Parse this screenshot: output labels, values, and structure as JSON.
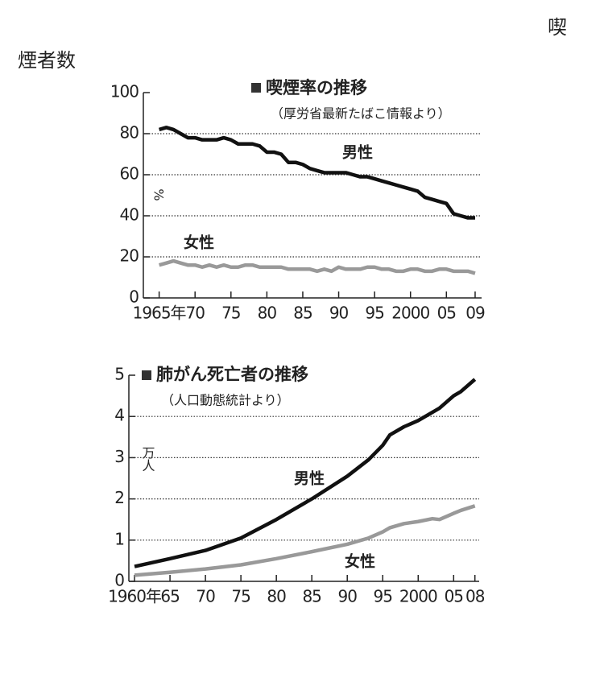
{
  "page_text": {
    "top_right": "喫",
    "left": "煙者数"
  },
  "chart_data": [
    {
      "type": "line",
      "title": "喫煙率の推移",
      "subtitle": "（厚労省最新たばこ情報より）",
      "ylabel": "%",
      "x": [
        1965,
        1966,
        1967,
        1968,
        1969,
        1970,
        1971,
        1972,
        1973,
        1974,
        1975,
        1976,
        1977,
        1978,
        1979,
        1980,
        1981,
        1982,
        1983,
        1984,
        1985,
        1986,
        1987,
        1988,
        1989,
        1990,
        1991,
        1992,
        1993,
        1994,
        1995,
        1996,
        1997,
        1998,
        1999,
        2000,
        2001,
        2002,
        2003,
        2004,
        2005,
        2006,
        2007,
        2008,
        2009
      ],
      "series": [
        {
          "name": "男性",
          "color": "#111111",
          "values": [
            82,
            83,
            82,
            80,
            78,
            78,
            77,
            77,
            77,
            78,
            77,
            75,
            75,
            75,
            74,
            71,
            71,
            70,
            66,
            66,
            65,
            63,
            62,
            61,
            61,
            61,
            61,
            60,
            59,
            59,
            58,
            57,
            56,
            55,
            54,
            53,
            52,
            49,
            48,
            47,
            46,
            41,
            40,
            39,
            39
          ]
        },
        {
          "name": "女性",
          "color": "#999999",
          "values": [
            16,
            17,
            18,
            17,
            16,
            16,
            15,
            16,
            15,
            16,
            15,
            15,
            16,
            16,
            15,
            15,
            15,
            15,
            14,
            14,
            14,
            14,
            13,
            14,
            13,
            15,
            14,
            14,
            14,
            15,
            15,
            14,
            14,
            13,
            13,
            14,
            14,
            13,
            13,
            14,
            14,
            13,
            13,
            13,
            12
          ]
        }
      ],
      "xlim": [
        1962.8,
        2009.9
      ],
      "xticks": [
        {
          "value": 1965,
          "label": "1965年"
        },
        {
          "value": 1970,
          "label": "70"
        },
        {
          "value": 1975,
          "label": "75"
        },
        {
          "value": 1980,
          "label": "80"
        },
        {
          "value": 1985,
          "label": "85"
        },
        {
          "value": 1990,
          "label": "90"
        },
        {
          "value": 1995,
          "label": "95"
        },
        2000,
        {
          "value": 2005,
          "label": "05"
        },
        {
          "value": 2009,
          "label": "09"
        }
      ],
      "ylim": [
        0,
        100
      ],
      "yticks": [
        0,
        20,
        40,
        60,
        80,
        100
      ],
      "grid": true
    },
    {
      "type": "line",
      "title": "肺がん死亡者の推移",
      "subtitle": "（人口動態統計より）",
      "ylabel": "万人",
      "x": [
        1960,
        1965,
        1970,
        1975,
        1980,
        1985,
        1990,
        1993,
        1995,
        1996,
        1998,
        2000,
        2002,
        2003,
        2005,
        2006,
        2008
      ],
      "series": [
        {
          "name": "男性",
          "color": "#111111",
          "values": [
            0.36,
            0.55,
            0.75,
            1.05,
            1.5,
            2.0,
            2.55,
            2.95,
            3.3,
            3.55,
            3.75,
            3.9,
            4.1,
            4.2,
            4.5,
            4.6,
            4.9
          ]
        },
        {
          "name": "女性",
          "color": "#999999",
          "values": [
            0.15,
            0.22,
            0.3,
            0.4,
            0.55,
            0.72,
            0.9,
            1.05,
            1.2,
            1.3,
            1.4,
            1.45,
            1.52,
            1.5,
            1.65,
            1.72,
            1.83
          ]
        }
      ],
      "xlim": [
        1959.2,
        2008.6
      ],
      "xticks": [
        {
          "value": 1960,
          "label": "1960年"
        },
        {
          "value": 1965,
          "label": "65"
        },
        {
          "value": 1970,
          "label": "70"
        },
        {
          "value": 1975,
          "label": "75"
        },
        {
          "value": 1980,
          "label": "80"
        },
        {
          "value": 1985,
          "label": "85"
        },
        {
          "value": 1990,
          "label": "90"
        },
        {
          "value": 1995,
          "label": "95"
        },
        2000,
        {
          "value": 2005,
          "label": "05"
        },
        {
          "value": 2008,
          "label": "08"
        }
      ],
      "ylim": [
        0,
        5
      ],
      "yticks": [
        0,
        1,
        2,
        3,
        4,
        5
      ],
      "grid": true
    }
  ]
}
